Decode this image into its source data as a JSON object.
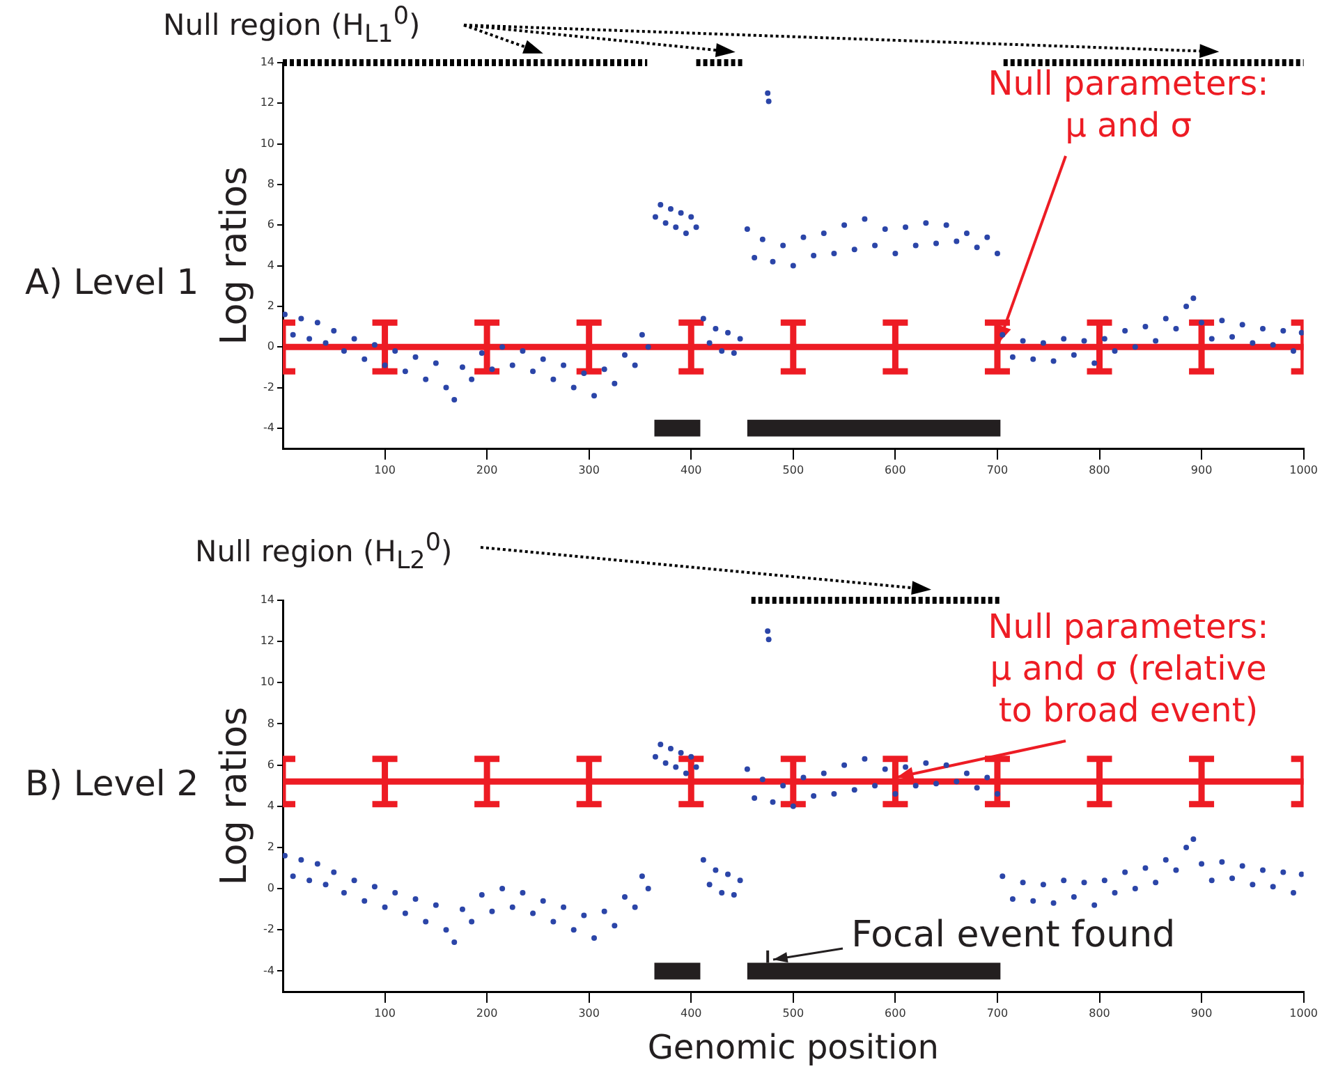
{
  "chart_data": [
    {
      "type": "scatter",
      "title": "A) Level 1",
      "ylabel": "Log ratios",
      "xlim": [
        0,
        1000
      ],
      "ylim": [
        -5,
        14
      ],
      "xticks": [
        100,
        200,
        300,
        400,
        500,
        600,
        700,
        800,
        900,
        1000
      ],
      "yticks": [
        -4,
        -2,
        0,
        2,
        4,
        6,
        8,
        10,
        12,
        14
      ],
      "grid": false,
      "legend": false,
      "annotations": [
        "Null region (H$_{L1}$$^{0}$)",
        {
          "text": "Null parameters:\nμ and σ",
          "x": 700,
          "y": 0
        }
      ],
      "series": [
        {
          "type": "line",
          "color": "#000000",
          "marker": "none",
          "line_style": "dashed",
          "x": [
            0,
            357,
            380,
            405,
            452,
            580,
            706,
            1000
          ],
          "values": [
            14,
            14,
            null,
            14,
            14,
            null,
            14,
            14
          ]
        },
        {
          "type": "scatter",
          "color": "#2b45a8",
          "marker": "circle",
          "x": [
            2,
            10,
            18,
            26,
            34,
            42,
            50,
            60,
            70,
            80,
            90,
            100,
            110,
            120,
            130,
            140,
            150,
            160,
            168,
            176,
            185,
            195,
            205,
            215,
            225,
            235,
            245,
            255,
            265,
            275,
            285,
            295,
            305,
            315,
            325,
            335,
            345,
            352,
            358,
            365,
            370,
            375,
            380,
            385,
            390,
            395,
            400,
            405,
            412,
            418,
            424,
            430,
            436,
            442,
            448,
            455,
            462,
            470,
            475,
            476,
            480,
            490,
            500,
            510,
            520,
            530,
            540,
            550,
            560,
            570,
            580,
            590,
            600,
            610,
            620,
            630,
            640,
            650,
            660,
            670,
            680,
            690,
            700,
            705,
            715,
            725,
            735,
            745,
            755,
            765,
            775,
            785,
            795,
            805,
            815,
            825,
            835,
            845,
            855,
            865,
            875,
            885,
            892,
            900,
            910,
            920,
            930,
            940,
            950,
            960,
            970,
            980,
            990,
            998
          ],
          "values": [
            1.6,
            0.6,
            1.4,
            0.4,
            1.2,
            0.2,
            0.8,
            -0.2,
            0.4,
            -0.6,
            0.1,
            -0.9,
            -0.2,
            -1.2,
            -0.5,
            -1.6,
            -0.8,
            -2.0,
            -2.6,
            -1.0,
            -1.6,
            -0.3,
            -1.1,
            0.0,
            -0.9,
            -0.2,
            -1.2,
            -0.6,
            -1.6,
            -0.9,
            -2.0,
            -1.3,
            -2.4,
            -1.1,
            -1.8,
            -0.4,
            -0.9,
            0.6,
            0.0,
            6.4,
            7.0,
            6.1,
            6.8,
            5.9,
            6.6,
            5.6,
            6.4,
            5.9,
            1.4,
            0.2,
            0.9,
            -0.2,
            0.7,
            -0.3,
            0.4,
            5.8,
            4.4,
            5.3,
            12.5,
            12.1,
            4.2,
            5.0,
            4.0,
            5.4,
            4.5,
            5.6,
            4.6,
            6.0,
            4.8,
            6.3,
            5.0,
            5.8,
            4.6,
            5.9,
            5.0,
            6.1,
            5.1,
            6.0,
            5.2,
            5.6,
            4.9,
            5.4,
            4.6,
            0.6,
            -0.5,
            0.3,
            -0.6,
            0.2,
            -0.7,
            0.4,
            -0.4,
            0.3,
            -0.8,
            0.4,
            -0.2,
            0.8,
            0.0,
            1.0,
            0.3,
            1.4,
            0.9,
            2.0,
            2.4,
            1.2,
            0.4,
            1.3,
            0.5,
            1.1,
            0.2,
            0.9,
            0.1,
            0.8,
            -0.2,
            0.7
          ]
        },
        {
          "type": "line",
          "color": "#ed1c24",
          "marker": "none",
          "line_style": "solid",
          "x": [
            0,
            100,
            200,
            300,
            400,
            500,
            600,
            700,
            800,
            900,
            1000
          ],
          "values": [
            0,
            0,
            0,
            0,
            0,
            0,
            0,
            0,
            0,
            0,
            0
          ],
          "errors": [
            1.2,
            1.2,
            1.2,
            1.2,
            1.2,
            1.2,
            1.2,
            1.2,
            1.2,
            1.2,
            1.2
          ]
        },
        {
          "type": "line",
          "color": "#231f20",
          "marker": "none",
          "line_style": "solid",
          "x": [
            364,
            409,
            432,
            455,
            703
          ],
          "values": [
            -4,
            -4,
            null,
            -4,
            -4
          ]
        }
      ]
    },
    {
      "type": "scatter",
      "title": "B) Level 2",
      "ylabel": "Log ratios",
      "xlabel": "Genomic position",
      "xlim": [
        0,
        1000
      ],
      "ylim": [
        -5,
        14
      ],
      "xticks": [
        100,
        200,
        300,
        400,
        500,
        600,
        700,
        800,
        900,
        1000
      ],
      "yticks": [
        -4,
        -2,
        0,
        2,
        4,
        6,
        8,
        10,
        12,
        14
      ],
      "grid": false,
      "legend": false,
      "annotations": [
        "Null region (H$_{L2}$$^{0}$)",
        {
          "text": "Null parameters:\nμ and σ (relative\nto broad event)",
          "x": 600,
          "y": 5.2
        },
        {
          "text": "Focal event found",
          "x": 475,
          "y": -3.3
        }
      ],
      "series": [
        {
          "type": "line",
          "color": "#000000",
          "marker": "none",
          "line_style": "dashed",
          "x": [
            459,
            703
          ],
          "values": [
            14,
            14
          ]
        },
        {
          "type": "line",
          "color": "#231f20",
          "marker": "none",
          "line_style": "solid",
          "x": [
            475,
            475
          ],
          "values": [
            -3.6,
            -3.0
          ]
        },
        {
          "type": "scatter",
          "color": "#2b45a8",
          "marker": "circle",
          "x": [
            2,
            10,
            18,
            26,
            34,
            42,
            50,
            60,
            70,
            80,
            90,
            100,
            110,
            120,
            130,
            140,
            150,
            160,
            168,
            176,
            185,
            195,
            205,
            215,
            225,
            235,
            245,
            255,
            265,
            275,
            285,
            295,
            305,
            315,
            325,
            335,
            345,
            352,
            358,
            365,
            370,
            375,
            380,
            385,
            390,
            395,
            400,
            405,
            412,
            418,
            424,
            430,
            436,
            442,
            448,
            455,
            462,
            470,
            475,
            476,
            480,
            490,
            500,
            510,
            520,
            530,
            540,
            550,
            560,
            570,
            580,
            590,
            600,
            610,
            620,
            630,
            640,
            650,
            660,
            670,
            680,
            690,
            700,
            705,
            715,
            725,
            735,
            745,
            755,
            765,
            775,
            785,
            795,
            805,
            815,
            825,
            835,
            845,
            855,
            865,
            875,
            885,
            892,
            900,
            910,
            920,
            930,
            940,
            950,
            960,
            970,
            980,
            990,
            998
          ],
          "values": [
            1.6,
            0.6,
            1.4,
            0.4,
            1.2,
            0.2,
            0.8,
            -0.2,
            0.4,
            -0.6,
            0.1,
            -0.9,
            -0.2,
            -1.2,
            -0.5,
            -1.6,
            -0.8,
            -2.0,
            -2.6,
            -1.0,
            -1.6,
            -0.3,
            -1.1,
            0.0,
            -0.9,
            -0.2,
            -1.2,
            -0.6,
            -1.6,
            -0.9,
            -2.0,
            -1.3,
            -2.4,
            -1.1,
            -1.8,
            -0.4,
            -0.9,
            0.6,
            0.0,
            6.4,
            7.0,
            6.1,
            6.8,
            5.9,
            6.6,
            5.6,
            6.4,
            5.9,
            1.4,
            0.2,
            0.9,
            -0.2,
            0.7,
            -0.3,
            0.4,
            5.8,
            4.4,
            5.3,
            12.5,
            12.1,
            4.2,
            5.0,
            4.0,
            5.4,
            4.5,
            5.6,
            4.6,
            6.0,
            4.8,
            6.3,
            5.0,
            5.8,
            4.6,
            5.9,
            5.0,
            6.1,
            5.1,
            6.0,
            5.2,
            5.6,
            4.9,
            5.4,
            4.6,
            0.6,
            -0.5,
            0.3,
            -0.6,
            0.2,
            -0.7,
            0.4,
            -0.4,
            0.3,
            -0.8,
            0.4,
            -0.2,
            0.8,
            0.0,
            1.0,
            0.3,
            1.4,
            0.9,
            2.0,
            2.4,
            1.2,
            0.4,
            1.3,
            0.5,
            1.1,
            0.2,
            0.9,
            0.1,
            0.8,
            -0.2,
            0.7
          ]
        },
        {
          "type": "line",
          "color": "#ed1c24",
          "marker": "none",
          "line_style": "solid",
          "x": [
            0,
            100,
            200,
            300,
            400,
            500,
            600,
            700,
            800,
            900,
            1000
          ],
          "values": [
            5.2,
            5.2,
            5.2,
            5.2,
            5.2,
            5.2,
            5.2,
            5.2,
            5.2,
            5.2,
            5.2
          ],
          "errors": [
            1.1,
            1.1,
            1.1,
            1.1,
            1.1,
            1.1,
            1.1,
            1.1,
            1.1,
            1.1,
            1.1
          ]
        },
        {
          "type": "line",
          "color": "#231f20",
          "marker": "none",
          "line_style": "solid",
          "x": [
            364,
            409,
            432,
            455,
            703
          ],
          "values": [
            -4,
            -4,
            null,
            -4,
            -4
          ]
        }
      ]
    }
  ]
}
